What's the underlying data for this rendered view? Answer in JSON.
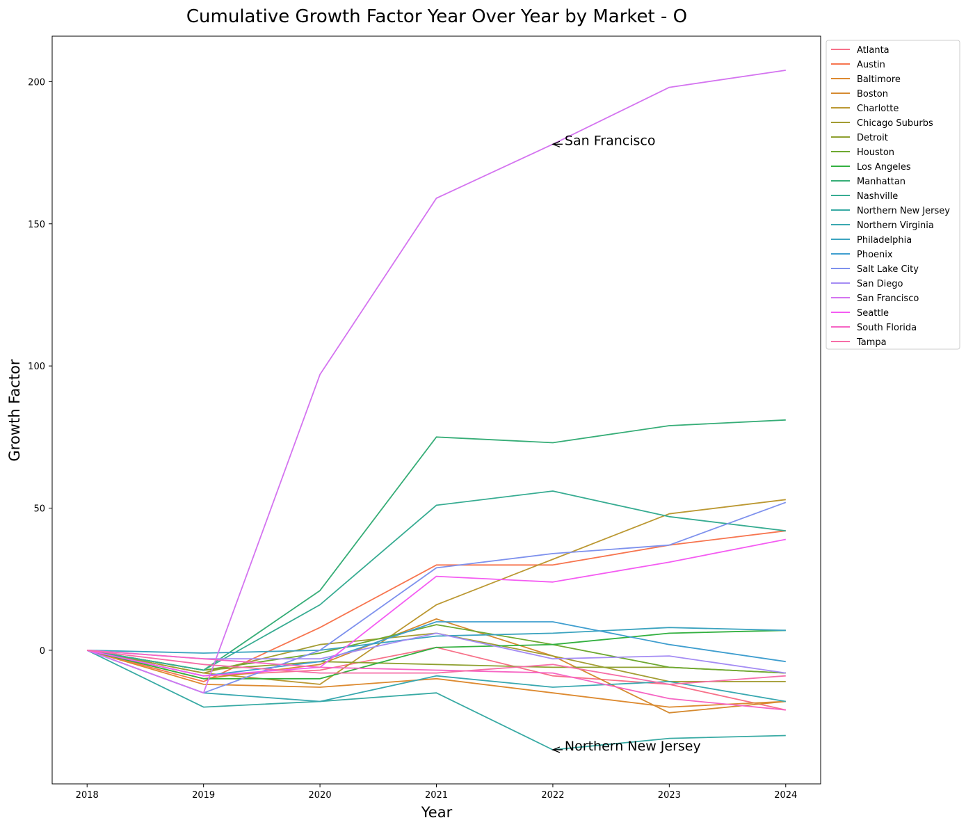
{
  "chart_data": {
    "type": "line",
    "title": "Cumulative Growth Factor Year Over Year by Market - O",
    "xlabel": "Year",
    "ylabel": "Growth Factor",
    "x": [
      2018,
      2019,
      2020,
      2021,
      2022,
      2023,
      2024
    ],
    "xlim": [
      2017.7,
      2024.3
    ],
    "ylim": [
      -47,
      216
    ],
    "yticks": [
      0,
      50,
      100,
      150,
      200
    ],
    "grid": false,
    "legend_position": "outside-top-right",
    "series": [
      {
        "name": "Atlanta",
        "color": "#f77189",
        "values": [
          0,
          -9,
          -7,
          1,
          -9,
          -12,
          -21
        ]
      },
      {
        "name": "Austin",
        "color": "#f7754f",
        "values": [
          0,
          -11,
          8,
          30,
          30,
          37,
          42
        ]
      },
      {
        "name": "Baltimore",
        "color": "#dd8a30",
        "values": [
          0,
          -12,
          -13,
          -10,
          -15,
          -20,
          -18
        ]
      },
      {
        "name": "Boston",
        "color": "#d58a30",
        "values": [
          0,
          -10,
          -5,
          11,
          -2,
          -22,
          -18
        ]
      },
      {
        "name": "Charlotte",
        "color": "#bb9832",
        "values": [
          0,
          -8,
          -12,
          16,
          32,
          48,
          53
        ]
      },
      {
        "name": "Chicago Suburbs",
        "color": "#a39c32",
        "values": [
          0,
          -8,
          2,
          6,
          -2,
          -11,
          -11
        ]
      },
      {
        "name": "Detroit",
        "color": "#8ea030",
        "values": [
          0,
          -7,
          -4,
          -5,
          -6,
          -6,
          -8
        ]
      },
      {
        "name": "Houston",
        "color": "#6ea830",
        "values": [
          0,
          -7,
          -1,
          9,
          2,
          -6,
          -8
        ]
      },
      {
        "name": "Los Angeles",
        "color": "#33b040",
        "values": [
          0,
          -10,
          -10,
          1,
          2,
          6,
          7
        ]
      },
      {
        "name": "Manhattan",
        "color": "#36ad77",
        "values": [
          0,
          -7,
          21,
          75,
          73,
          79,
          81
        ]
      },
      {
        "name": "Nashville",
        "color": "#37ac92",
        "values": [
          0,
          -7,
          16,
          51,
          56,
          47,
          42
        ]
      },
      {
        "name": "Northern New Jersey",
        "color": "#38aaa4",
        "values": [
          0,
          -20,
          -18,
          -15,
          -35,
          -31,
          -30
        ]
      },
      {
        "name": "Northern Virginia",
        "color": "#39a8b0",
        "values": [
          0,
          -15,
          -18,
          -9,
          -13,
          -11,
          -18
        ]
      },
      {
        "name": "Philadelphia",
        "color": "#3ba3bf",
        "values": [
          0,
          -1,
          0,
          5,
          6,
          8,
          7
        ]
      },
      {
        "name": "Phoenix",
        "color": "#3f9ecf",
        "values": [
          0,
          -9,
          -4,
          10,
          10,
          2,
          -4
        ]
      },
      {
        "name": "Salt Lake City",
        "color": "#7e91ed",
        "values": [
          0,
          -15,
          0,
          29,
          34,
          37,
          52
        ]
      },
      {
        "name": "San Diego",
        "color": "#a48cf4",
        "values": [
          0,
          -3,
          -3,
          6,
          -3,
          -2,
          -8
        ]
      },
      {
        "name": "San Francisco",
        "color": "#d474f0",
        "values": [
          0,
          -15,
          97,
          159,
          178,
          198,
          204
        ]
      },
      {
        "name": "Seattle",
        "color": "#f45cf2",
        "values": [
          0,
          -9,
          -6,
          26,
          24,
          31,
          39
        ]
      },
      {
        "name": "South Florida",
        "color": "#f665c4",
        "values": [
          0,
          -3,
          -6,
          -7,
          -8,
          -17,
          -21
        ]
      },
      {
        "name": "Tampa",
        "color": "#f66ea7",
        "values": [
          0,
          -5,
          -8,
          -8,
          -5,
          -12,
          -9
        ]
      }
    ],
    "annotations": [
      {
        "text": "San Francisco",
        "x": 2022,
        "y": 178
      },
      {
        "text": "Northern New Jersey",
        "x": 2022,
        "y": -35
      }
    ]
  }
}
